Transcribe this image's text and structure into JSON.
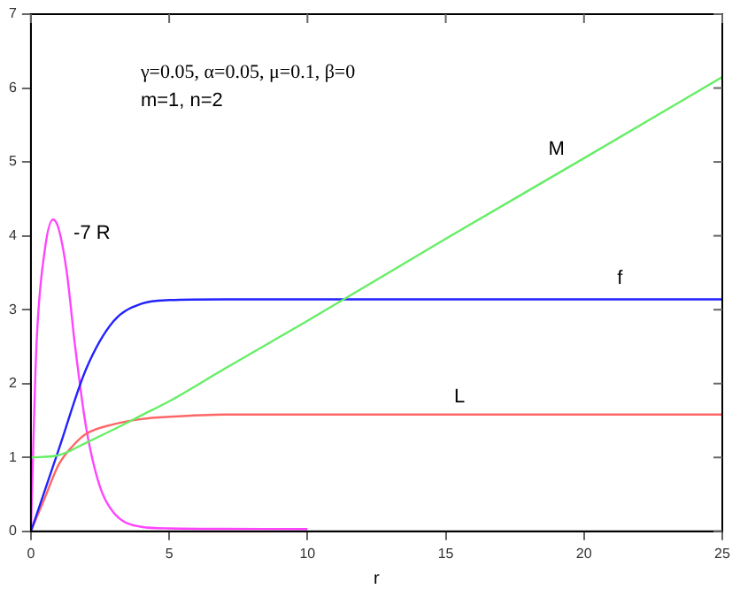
{
  "chart_data": {
    "type": "line",
    "xlabel": "r",
    "xlim": [
      0,
      25
    ],
    "xticks": [
      0,
      5,
      10,
      15,
      20,
      25
    ],
    "ylim": [
      0,
      7
    ],
    "yticks": [
      0,
      1,
      2,
      3,
      4,
      5,
      6,
      7
    ],
    "grid": false,
    "legend": false,
    "marker": "none",
    "line_style": "solid",
    "annotations": [
      "γ=0.05, α=0.05, μ=0.1, β=0",
      "m=1, n=2"
    ],
    "series": [
      {
        "name": "M",
        "color": "#66ee66",
        "x": [
          0,
          1,
          2,
          3,
          4,
          5,
          7,
          10,
          15,
          20,
          25
        ],
        "values": [
          1,
          1.03,
          1.2,
          1.38,
          1.57,
          1.76,
          2.2,
          2.85,
          3.96,
          5.05,
          6.15
        ]
      },
      {
        "name": "f",
        "color": "#2222ff",
        "x": [
          0,
          1,
          2,
          3,
          4,
          5,
          7,
          25
        ],
        "values": [
          0,
          1.1,
          2.2,
          2.85,
          3.08,
          3.13,
          3.14,
          3.14
        ]
      },
      {
        "name": "L",
        "color": "#ff6666",
        "x": [
          0,
          0.5,
          1,
          1.5,
          2,
          3,
          4,
          5,
          7,
          25
        ],
        "values": [
          0,
          0.45,
          0.9,
          1.15,
          1.32,
          1.45,
          1.52,
          1.55,
          1.58,
          1.58
        ]
      },
      {
        "name": "-7 R",
        "color": "#ff44ff",
        "x": [
          0,
          0.2,
          0.5,
          0.8,
          1,
          1.3,
          1.6,
          2,
          2.5,
          3,
          4,
          5,
          10
        ],
        "values": [
          0,
          2.5,
          3.8,
          4.22,
          4.1,
          3.5,
          2.5,
          1.4,
          0.6,
          0.25,
          0.06,
          0.04,
          0.03
        ]
      }
    ]
  }
}
